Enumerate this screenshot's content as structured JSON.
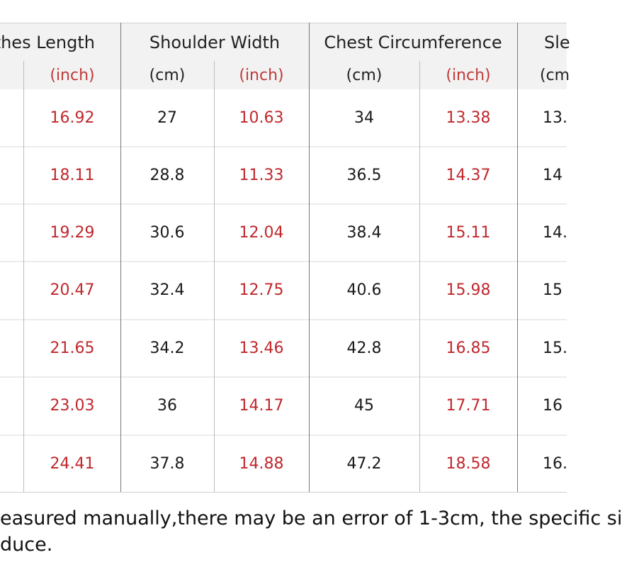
{
  "headers": [
    "thes Length",
    "Shoulder Width",
    "Chest Circumference",
    "Sle"
  ],
  "units": [
    "(inch)",
    "(cm)",
    "(inch)",
    "(cm)",
    "(inch)",
    "(cm)"
  ],
  "unit_last": "(cm",
  "rows": [
    {
      "length_in": "16.92",
      "shoulder_cm": "27",
      "shoulder_in": "10.63",
      "chest_cm": "34",
      "chest_in": "13.38",
      "sleeve_cm": "13."
    },
    {
      "length_in": "18.11",
      "shoulder_cm": "28.8",
      "shoulder_in": "11.33",
      "chest_cm": "36.5",
      "chest_in": "14.37",
      "sleeve_cm": "14"
    },
    {
      "length_in": "19.29",
      "shoulder_cm": "30.6",
      "shoulder_in": "12.04",
      "chest_cm": "38.4",
      "chest_in": "15.11",
      "sleeve_cm": "14."
    },
    {
      "length_in": "20.47",
      "shoulder_cm": "32.4",
      "shoulder_in": "12.75",
      "chest_cm": "40.6",
      "chest_in": "15.98",
      "sleeve_cm": "15"
    },
    {
      "length_in": "21.65",
      "shoulder_cm": "34.2",
      "shoulder_in": "13.46",
      "chest_cm": "42.8",
      "chest_in": "16.85",
      "sleeve_cm": "15."
    },
    {
      "length_in": "23.03",
      "shoulder_cm": "36",
      "shoulder_in": "14.17",
      "chest_cm": "45",
      "chest_in": "17.71",
      "sleeve_cm": "16"
    },
    {
      "length_in": "24.41",
      "shoulder_cm": "37.8",
      "shoulder_in": "14.88",
      "chest_cm": "47.2",
      "chest_in": "18.58",
      "sleeve_cm": "16."
    }
  ],
  "note_line1": "easured manually,there may be an error of 1-3cm, the specific si",
  "note_line2": "duce.",
  "colors": {
    "inch_value": "#c0282d",
    "header_bg": "#f2f2f2"
  }
}
